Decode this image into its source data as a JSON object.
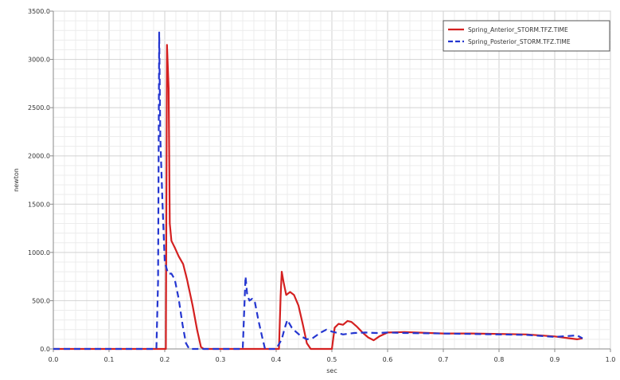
{
  "chart_data": {
    "type": "line",
    "title": "",
    "xlabel": "sec",
    "ylabel": "newton",
    "xlim": [
      0.0,
      1.0
    ],
    "ylim": [
      0.0,
      3500.0
    ],
    "x_ticks": [
      "0.0",
      "0.1",
      "0.2",
      "0.3",
      "0.4",
      "0.5",
      "0.6",
      "0.7",
      "0.8",
      "0.9",
      "1.0"
    ],
    "y_ticks": [
      "0.0",
      "500.0",
      "1000.0",
      "1500.0",
      "2000.0",
      "2500.0",
      "3000.0",
      "3500.0"
    ],
    "grid": true,
    "legend_position": "top-right",
    "series": [
      {
        "name": "Spring_Anterior_STORM.TFZ.TIME",
        "color": "#d42020",
        "style": "solid",
        "points": [
          [
            0.0,
            0
          ],
          [
            0.2,
            0
          ],
          [
            0.2,
            0
          ],
          [
            0.202,
            0
          ],
          [
            0.204,
            3150
          ],
          [
            0.207,
            2700
          ],
          [
            0.209,
            1300
          ],
          [
            0.212,
            1120
          ],
          [
            0.218,
            1050
          ],
          [
            0.225,
            960
          ],
          [
            0.233,
            880
          ],
          [
            0.24,
            720
          ],
          [
            0.25,
            450
          ],
          [
            0.258,
            200
          ],
          [
            0.265,
            20
          ],
          [
            0.27,
            0
          ],
          [
            0.34,
            0
          ],
          [
            0.405,
            0
          ],
          [
            0.408,
            550
          ],
          [
            0.41,
            800
          ],
          [
            0.413,
            700
          ],
          [
            0.418,
            560
          ],
          [
            0.425,
            590
          ],
          [
            0.432,
            560
          ],
          [
            0.44,
            450
          ],
          [
            0.448,
            250
          ],
          [
            0.455,
            60
          ],
          [
            0.462,
            0
          ],
          [
            0.5,
            0
          ],
          [
            0.505,
            220
          ],
          [
            0.512,
            260
          ],
          [
            0.52,
            250
          ],
          [
            0.528,
            290
          ],
          [
            0.535,
            280
          ],
          [
            0.545,
            230
          ],
          [
            0.555,
            170
          ],
          [
            0.565,
            120
          ],
          [
            0.575,
            90
          ],
          [
            0.585,
            130
          ],
          [
            0.6,
            170
          ],
          [
            0.63,
            175
          ],
          [
            0.7,
            160
          ],
          [
            0.75,
            160
          ],
          [
            0.8,
            155
          ],
          [
            0.85,
            150
          ],
          [
            0.9,
            130
          ],
          [
            0.94,
            100
          ],
          [
            0.95,
            110
          ]
        ]
      },
      {
        "name": "Spring_Posterior_STORM.TFZ.TIME",
        "color": "#2436d0",
        "style": "dashed",
        "points": [
          [
            0.0,
            0
          ],
          [
            0.185,
            0
          ],
          [
            0.188,
            700
          ],
          [
            0.19,
            3280
          ],
          [
            0.192,
            2200
          ],
          [
            0.196,
            1500
          ],
          [
            0.2,
            900
          ],
          [
            0.206,
            780
          ],
          [
            0.212,
            780
          ],
          [
            0.218,
            720
          ],
          [
            0.225,
            520
          ],
          [
            0.232,
            250
          ],
          [
            0.238,
            60
          ],
          [
            0.244,
            0
          ],
          [
            0.34,
            0
          ],
          [
            0.342,
            300
          ],
          [
            0.345,
            750
          ],
          [
            0.348,
            560
          ],
          [
            0.352,
            500
          ],
          [
            0.357,
            520
          ],
          [
            0.362,
            480
          ],
          [
            0.368,
            300
          ],
          [
            0.375,
            120
          ],
          [
            0.38,
            0
          ],
          [
            0.4,
            0
          ],
          [
            0.41,
            100
          ],
          [
            0.415,
            210
          ],
          [
            0.42,
            300
          ],
          [
            0.428,
            220
          ],
          [
            0.435,
            180
          ],
          [
            0.445,
            130
          ],
          [
            0.455,
            100
          ],
          [
            0.465,
            110
          ],
          [
            0.48,
            170
          ],
          [
            0.49,
            200
          ],
          [
            0.5,
            180
          ],
          [
            0.52,
            150
          ],
          [
            0.54,
            165
          ],
          [
            0.56,
            170
          ],
          [
            0.58,
            165
          ],
          [
            0.6,
            170
          ],
          [
            0.63,
            165
          ],
          [
            0.7,
            160
          ],
          [
            0.75,
            155
          ],
          [
            0.8,
            150
          ],
          [
            0.85,
            145
          ],
          [
            0.9,
            125
          ],
          [
            0.94,
            140
          ],
          [
            0.95,
            110
          ]
        ]
      }
    ]
  }
}
